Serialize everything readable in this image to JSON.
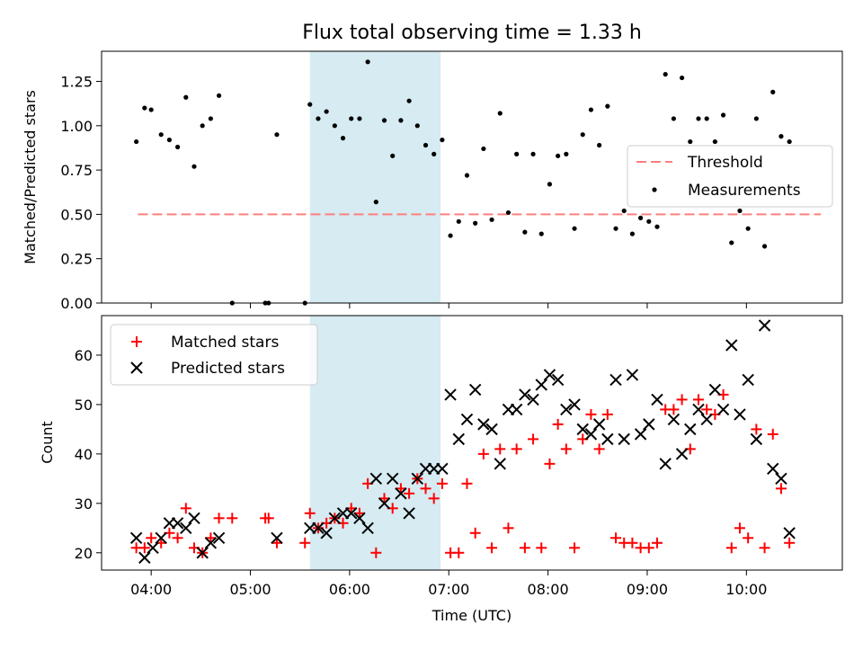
{
  "title": "Flux total observing time = 1.33 h",
  "chart_data": [
    {
      "type": "scatter",
      "title": "Flux total observing time = 1.33 h",
      "xlabel": "",
      "ylabel": "Matched/Predicted stars",
      "xlim": [
        "03:30",
        "10:58"
      ],
      "ylim": [
        0,
        1.42
      ],
      "yticks": [
        "0.00",
        "0.25",
        "0.50",
        "0.75",
        "1.00",
        "1.25"
      ],
      "shaded_span": {
        "from": "05:36",
        "to": "06:55",
        "color": "#add8e6"
      },
      "threshold": {
        "name": "Threshold",
        "y": 0.5,
        "from": "03:52",
        "to": "10:45",
        "color": "#ff7f7f",
        "style": "dashed"
      },
      "legend": {
        "position": "center-right",
        "entries": [
          "Threshold",
          "Measurements"
        ]
      },
      "series": [
        {
          "name": "Measurements",
          "marker": "dot",
          "color": "#000000",
          "points": [
            [
              "03:51",
              0.91
            ],
            [
              "03:56",
              1.1
            ],
            [
              "04:00",
              1.09
            ],
            [
              "04:06",
              0.95
            ],
            [
              "04:11",
              0.92
            ],
            [
              "04:16",
              0.88
            ],
            [
              "04:21",
              1.16
            ],
            [
              "04:26",
              0.77
            ],
            [
              "04:31",
              1.0
            ],
            [
              "04:36",
              1.04
            ],
            [
              "04:41",
              1.17
            ],
            [
              "04:49",
              0.0
            ],
            [
              "05:09",
              0.0
            ],
            [
              "05:11",
              0.0
            ],
            [
              "05:16",
              0.95
            ],
            [
              "05:33",
              0.0
            ],
            [
              "05:36",
              1.12
            ],
            [
              "05:41",
              1.04
            ],
            [
              "05:46",
              1.08
            ],
            [
              "05:51",
              1.0
            ],
            [
              "05:56",
              0.93
            ],
            [
              "06:01",
              1.04
            ],
            [
              "06:06",
              1.04
            ],
            [
              "06:11",
              1.36
            ],
            [
              "06:16",
              0.57
            ],
            [
              "06:21",
              1.03
            ],
            [
              "06:26",
              0.83
            ],
            [
              "06:31",
              1.03
            ],
            [
              "06:36",
              1.14
            ],
            [
              "06:41",
              1.0
            ],
            [
              "06:46",
              0.89
            ],
            [
              "06:51",
              0.84
            ],
            [
              "06:56",
              0.92
            ],
            [
              "07:01",
              0.38
            ],
            [
              "07:06",
              0.46
            ],
            [
              "07:11",
              0.72
            ],
            [
              "07:16",
              0.45
            ],
            [
              "07:21",
              0.87
            ],
            [
              "07:26",
              0.47
            ],
            [
              "07:31",
              1.07
            ],
            [
              "07:36",
              0.51
            ],
            [
              "07:41",
              0.84
            ],
            [
              "07:46",
              0.4
            ],
            [
              "07:51",
              0.84
            ],
            [
              "07:56",
              0.39
            ],
            [
              "08:01",
              0.67
            ],
            [
              "08:06",
              0.83
            ],
            [
              "08:11",
              0.84
            ],
            [
              "08:16",
              0.42
            ],
            [
              "08:21",
              0.95
            ],
            [
              "08:26",
              1.09
            ],
            [
              "08:31",
              0.89
            ],
            [
              "08:36",
              1.11
            ],
            [
              "08:41",
              0.42
            ],
            [
              "08:46",
              0.52
            ],
            [
              "08:51",
              0.39
            ],
            [
              "08:56",
              0.48
            ],
            [
              "09:01",
              0.46
            ],
            [
              "09:06",
              0.43
            ],
            [
              "09:11",
              1.29
            ],
            [
              "09:16",
              1.04
            ],
            [
              "09:21",
              1.27
            ],
            [
              "09:26",
              0.91
            ],
            [
              "09:31",
              1.04
            ],
            [
              "09:36",
              1.04
            ],
            [
              "09:41",
              0.91
            ],
            [
              "09:46",
              1.06
            ],
            [
              "09:51",
              0.34
            ],
            [
              "09:56",
              0.52
            ],
            [
              "10:01",
              0.42
            ],
            [
              "10:06",
              1.04
            ],
            [
              "10:11",
              0.32
            ],
            [
              "10:16",
              1.19
            ],
            [
              "10:21",
              0.94
            ],
            [
              "10:26",
              0.91
            ]
          ]
        }
      ]
    },
    {
      "type": "scatter",
      "title": "",
      "xlabel": "Time (UTC)",
      "ylabel": "Count",
      "xlim": [
        "03:30",
        "10:58"
      ],
      "ylim": [
        16.5,
        68
      ],
      "yticks": [
        "20",
        "30",
        "40",
        "50",
        "60"
      ],
      "xticks": [
        "04:00",
        "05:00",
        "06:00",
        "07:00",
        "08:00",
        "09:00",
        "10:00"
      ],
      "shaded_span": {
        "from": "05:36",
        "to": "06:55",
        "color": "#add8e6"
      },
      "legend": {
        "position": "top-left",
        "entries": [
          "Matched stars",
          "Predicted stars"
        ]
      },
      "series": [
        {
          "name": "Matched stars",
          "marker": "plus",
          "color": "#ff0000",
          "points": [
            [
              "03:51",
              21
            ],
            [
              "03:56",
              21
            ],
            [
              "04:00",
              23
            ],
            [
              "04:06",
              22
            ],
            [
              "04:11",
              24
            ],
            [
              "04:16",
              23
            ],
            [
              "04:21",
              29
            ],
            [
              "04:26",
              21
            ],
            [
              "04:31",
              20
            ],
            [
              "04:36",
              23
            ],
            [
              "04:41",
              27
            ],
            [
              "04:49",
              27
            ],
            [
              "05:09",
              27
            ],
            [
              "05:11",
              27
            ],
            [
              "05:16",
              22
            ],
            [
              "05:33",
              22
            ],
            [
              "05:36",
              28
            ],
            [
              "05:41",
              25
            ],
            [
              "05:46",
              26
            ],
            [
              "05:51",
              27
            ],
            [
              "05:56",
              26
            ],
            [
              "06:01",
              29
            ],
            [
              "06:06",
              28
            ],
            [
              "06:11",
              34
            ],
            [
              "06:16",
              20
            ],
            [
              "06:21",
              31
            ],
            [
              "06:26",
              29
            ],
            [
              "06:31",
              33
            ],
            [
              "06:36",
              32
            ],
            [
              "06:41",
              35
            ],
            [
              "06:46",
              33
            ],
            [
              "06:51",
              31
            ],
            [
              "06:56",
              34
            ],
            [
              "07:01",
              20
            ],
            [
              "07:06",
              20
            ],
            [
              "07:11",
              34
            ],
            [
              "07:16",
              24
            ],
            [
              "07:21",
              40
            ],
            [
              "07:26",
              21
            ],
            [
              "07:31",
              41
            ],
            [
              "07:36",
              25
            ],
            [
              "07:41",
              41
            ],
            [
              "07:46",
              21
            ],
            [
              "07:51",
              43
            ],
            [
              "07:56",
              21
            ],
            [
              "08:01",
              38
            ],
            [
              "08:06",
              46
            ],
            [
              "08:11",
              41
            ],
            [
              "08:16",
              21
            ],
            [
              "08:21",
              43
            ],
            [
              "08:26",
              48
            ],
            [
              "08:31",
              41
            ],
            [
              "08:36",
              48
            ],
            [
              "08:41",
              23
            ],
            [
              "08:46",
              22
            ],
            [
              "08:51",
              22
            ],
            [
              "08:56",
              21
            ],
            [
              "09:01",
              21
            ],
            [
              "09:06",
              22
            ],
            [
              "09:11",
              49
            ],
            [
              "09:16",
              49
            ],
            [
              "09:21",
              51
            ],
            [
              "09:26",
              41
            ],
            [
              "09:31",
              51
            ],
            [
              "09:36",
              49
            ],
            [
              "09:41",
              48
            ],
            [
              "09:46",
              52
            ],
            [
              "09:51",
              21
            ],
            [
              "09:56",
              25
            ],
            [
              "10:01",
              23
            ],
            [
              "10:06",
              45
            ],
            [
              "10:11",
              21
            ],
            [
              "10:16",
              44
            ],
            [
              "10:21",
              33
            ],
            [
              "10:26",
              22
            ]
          ]
        },
        {
          "name": "Predicted stars",
          "marker": "x",
          "color": "#000000",
          "points": [
            [
              "03:51",
              23
            ],
            [
              "03:56",
              19
            ],
            [
              "04:01",
              21
            ],
            [
              "04:06",
              23
            ],
            [
              "04:11",
              26
            ],
            [
              "04:16",
              26
            ],
            [
              "04:21",
              25
            ],
            [
              "04:26",
              27
            ],
            [
              "04:31",
              20
            ],
            [
              "04:36",
              22
            ],
            [
              "04:41",
              23
            ],
            [
              "05:16",
              23
            ],
            [
              "05:36",
              25
            ],
            [
              "05:41",
              25
            ],
            [
              "05:46",
              24
            ],
            [
              "05:51",
              27
            ],
            [
              "05:56",
              28
            ],
            [
              "06:01",
              28
            ],
            [
              "06:06",
              27
            ],
            [
              "06:11",
              25
            ],
            [
              "06:16",
              35
            ],
            [
              "06:21",
              30
            ],
            [
              "06:26",
              35
            ],
            [
              "06:31",
              32
            ],
            [
              "06:36",
              28
            ],
            [
              "06:41",
              35
            ],
            [
              "06:46",
              37
            ],
            [
              "06:51",
              37
            ],
            [
              "06:56",
              37
            ],
            [
              "07:01",
              52
            ],
            [
              "07:06",
              43
            ],
            [
              "07:11",
              47
            ],
            [
              "07:16",
              53
            ],
            [
              "07:21",
              46
            ],
            [
              "07:26",
              45
            ],
            [
              "07:31",
              38
            ],
            [
              "07:36",
              49
            ],
            [
              "07:41",
              49
            ],
            [
              "07:46",
              52
            ],
            [
              "07:51",
              51
            ],
            [
              "07:56",
              54
            ],
            [
              "08:01",
              56
            ],
            [
              "08:06",
              55
            ],
            [
              "08:11",
              49
            ],
            [
              "08:16",
              50
            ],
            [
              "08:21",
              45
            ],
            [
              "08:26",
              44
            ],
            [
              "08:31",
              46
            ],
            [
              "08:36",
              43
            ],
            [
              "08:41",
              55
            ],
            [
              "08:46",
              43
            ],
            [
              "08:51",
              56
            ],
            [
              "08:56",
              44
            ],
            [
              "09:01",
              46
            ],
            [
              "09:06",
              51
            ],
            [
              "09:11",
              38
            ],
            [
              "09:16",
              47
            ],
            [
              "09:21",
              40
            ],
            [
              "09:26",
              45
            ],
            [
              "09:31",
              49
            ],
            [
              "09:36",
              47
            ],
            [
              "09:41",
              53
            ],
            [
              "09:46",
              49
            ],
            [
              "09:51",
              62
            ],
            [
              "09:56",
              48
            ],
            [
              "10:01",
              55
            ],
            [
              "10:06",
              43
            ],
            [
              "10:11",
              66
            ],
            [
              "10:16",
              37
            ],
            [
              "10:21",
              35
            ],
            [
              "10:26",
              24
            ]
          ]
        }
      ]
    }
  ]
}
